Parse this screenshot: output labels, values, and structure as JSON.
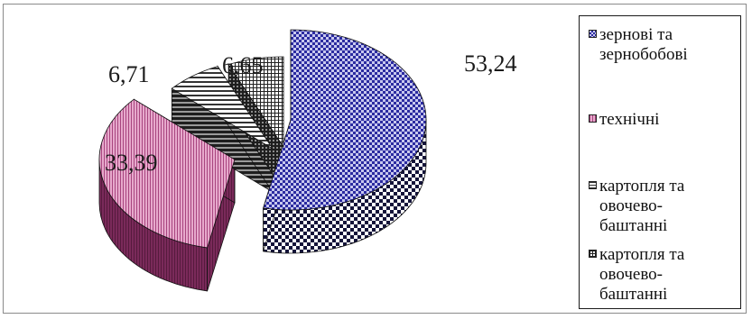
{
  "chart_data": {
    "type": "pie",
    "style": "3d-exploded",
    "slices": [
      {
        "label": "зернові та зернобобові",
        "value": 53.24,
        "value_label": "53,24",
        "color": "#3b3bb0",
        "pattern": "checker"
      },
      {
        "label": "технічні",
        "value": 33.39,
        "value_label": "33,39",
        "color": "#b3578a",
        "pattern": "vertical-lines"
      },
      {
        "label": "картопля та овочево-баштанні",
        "value": 6.71,
        "value_label": "6,71",
        "color": "#3a3a3a",
        "pattern": "horizontal-lines"
      },
      {
        "label": "картопля та овочево-баштанні",
        "value": 6.65,
        "value_label": "6,65",
        "color": "#3a3a3a",
        "pattern": "grid"
      }
    ],
    "legend_position": "right"
  },
  "legend": {
    "items": [
      {
        "lines": [
          "зернові та",
          "зернобобові"
        ],
        "color": "#3b3bb0",
        "pattern": "checker"
      },
      {
        "lines": [
          "технічні"
        ],
        "color": "#b3578a",
        "pattern": "vertical-lines"
      },
      {
        "lines": [
          "картопля та",
          "овочево-",
          "баштанні"
        ],
        "color": "#3a3a3a",
        "pattern": "horizontal-lines"
      },
      {
        "lines": [
          "картопля та",
          "овочево-",
          "баштанні"
        ],
        "color": "#3a3a3a",
        "pattern": "grid"
      }
    ]
  }
}
